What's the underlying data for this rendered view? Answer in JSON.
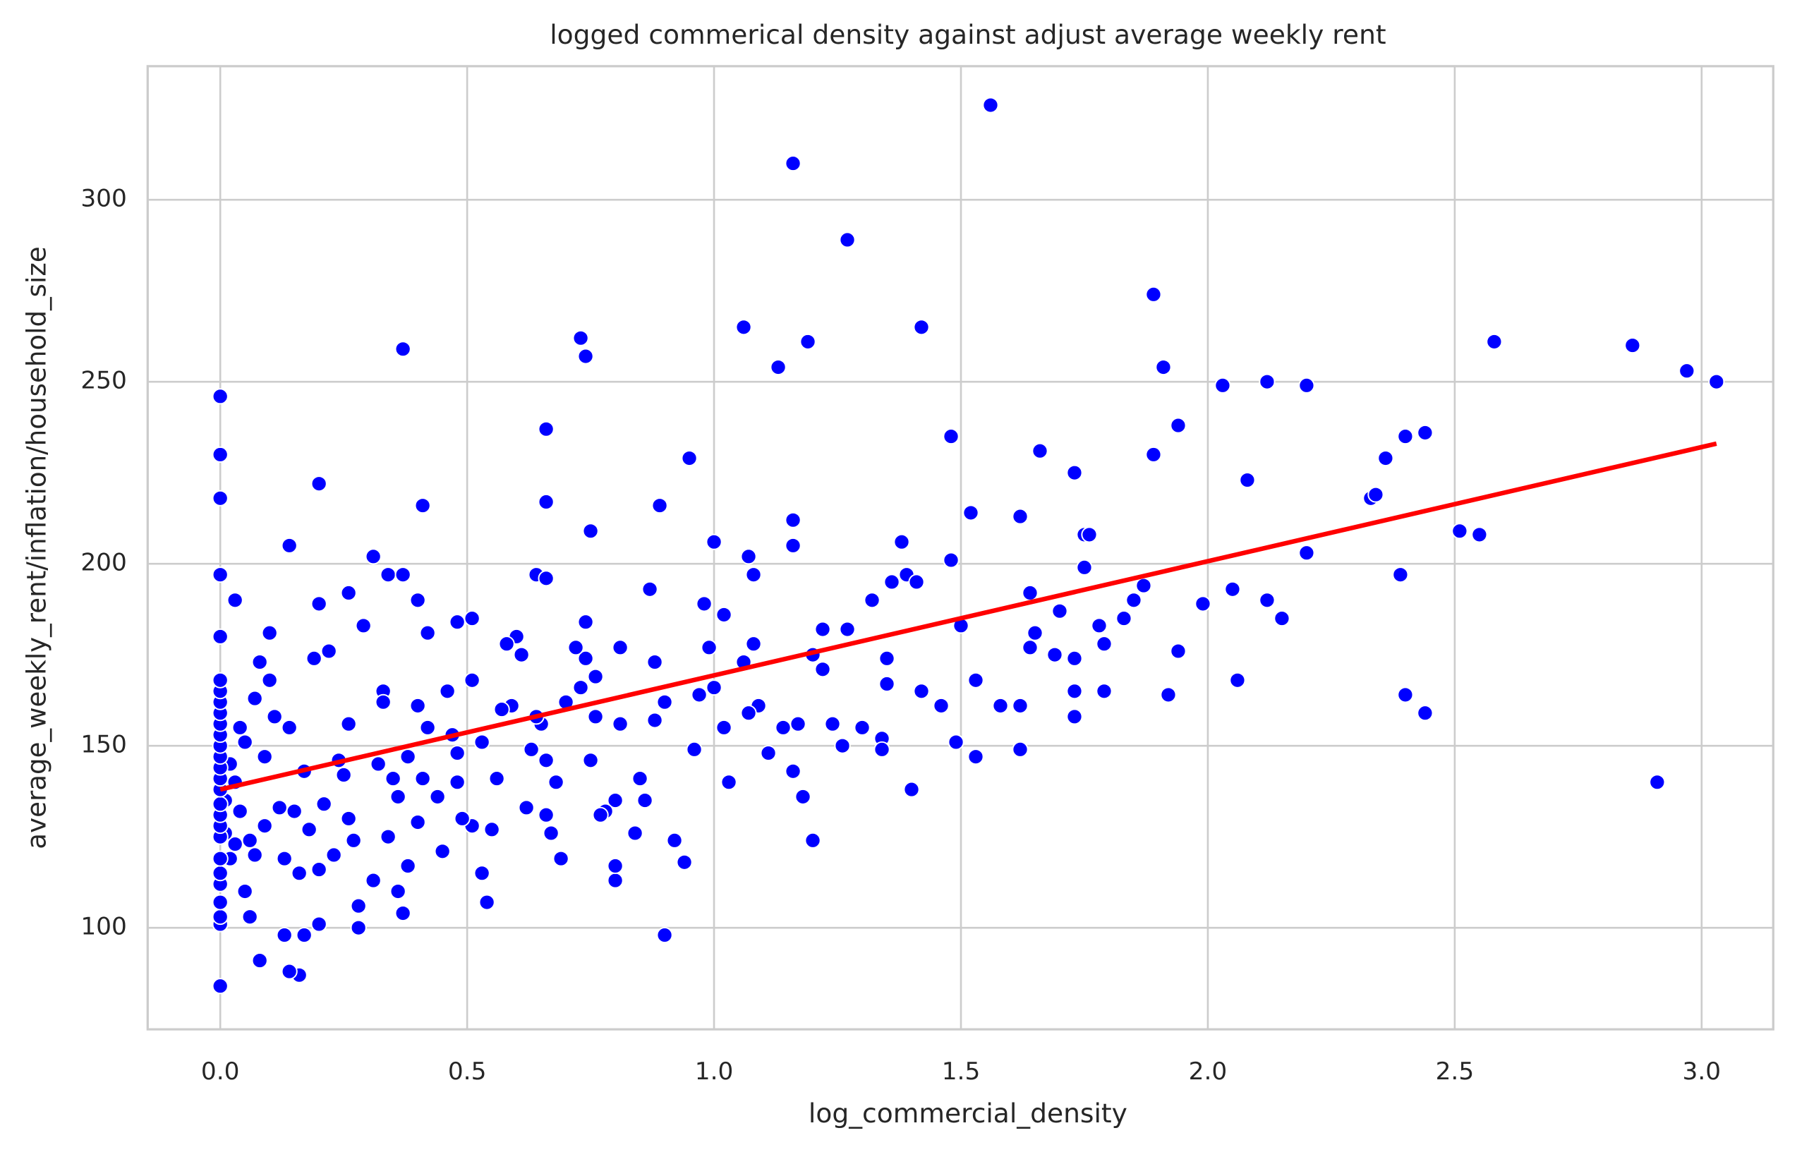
{
  "chart_data": {
    "type": "scatter",
    "title": "logged commerical density against adjust average weekly rent",
    "x_label": "log_commercial_density",
    "y_label": "average_weekly_rent/inflation/household_size",
    "color": "#0000ff",
    "grid": true,
    "xlim": [
      -0.147,
      3.145
    ],
    "ylim": [
      72.1,
      336.7
    ],
    "xticks": [
      {
        "value": 0,
        "label": "0.0"
      },
      0.5,
      {
        "value": 1,
        "label": "1.0"
      },
      1.5,
      {
        "value": 2,
        "label": "2.0"
      },
      2.5,
      {
        "value": 3,
        "label": "3.0"
      }
    ],
    "yticks": [
      100,
      150,
      200,
      250,
      300
    ],
    "x": [
      1.56,
      1.16,
      1.27,
      1.89,
      0.73,
      0.74,
      0.37,
      1.06,
      1.19,
      1.42,
      1.13,
      1.91,
      2.03,
      2.12,
      2.2,
      2.58,
      2.86,
      2.97,
      3.03,
      0.0,
      0.0,
      0.0,
      0.0,
      0.0,
      0.2,
      0.41,
      0.66,
      0.95,
      0.89,
      1.48,
      1.66,
      1.94,
      1.89,
      2.08,
      1.73,
      2.36,
      2.4,
      2.44,
      2.33,
      2.34,
      2.51,
      2.55,
      2.2,
      2.39,
      2.4,
      2.44,
      2.91,
      1.62,
      1.52,
      1.16,
      1.16,
      0.75,
      0.66,
      0.14,
      0.31,
      0.34,
      0.37,
      0.64,
      0.66,
      0.03,
      0.2,
      0.26,
      0.4,
      0.48,
      0.51,
      0.87,
      0.98,
      1.0,
      1.07,
      1.08,
      1.32,
      1.38,
      1.36,
      1.39,
      1.41,
      1.48,
      1.5,
      1.64,
      1.7,
      1.75,
      1.76,
      1.75,
      1.83,
      1.85,
      1.87,
      1.99,
      2.05,
      2.12,
      2.15,
      1.92,
      1.94,
      2.06,
      1.79,
      1.79,
      1.78,
      1.73,
      1.73,
      1.73,
      1.69,
      1.65,
      1.64,
      1.62,
      1.62,
      1.58,
      1.53,
      1.53,
      1.49,
      1.46,
      1.42,
      1.4,
      1.35,
      1.35,
      1.34,
      1.34,
      1.3,
      1.27,
      1.26,
      1.24,
      1.22,
      1.22,
      1.2,
      1.2,
      1.18,
      1.17,
      1.16,
      1.14,
      1.11,
      1.09,
      1.08,
      1.07,
      1.06,
      1.03,
      1.02,
      1.02,
      1.0,
      0.99,
      0.97,
      0.96,
      0.94,
      0.92,
      0.9,
      0.9,
      0.88,
      0.88,
      0.86,
      0.85,
      0.84,
      0.81,
      0.81,
      0.8,
      0.8,
      0.8,
      0.78,
      0.77,
      0.76,
      0.76,
      0.75,
      0.74,
      0.74,
      0.73,
      0.72,
      0.7,
      0.69,
      0.68,
      0.67,
      0.66,
      0.66,
      0.65,
      0.64,
      0.63,
      0.62,
      0.61,
      0.6,
      0.59,
      0.58,
      0.57,
      0.56,
      0.55,
      0.54,
      0.53,
      0.53,
      0.51,
      0.51,
      0.49,
      0.48,
      0.48,
      0.47,
      0.46,
      0.45,
      0.44,
      0.42,
      0.42,
      0.41,
      0.4,
      0.4,
      0.38,
      0.38,
      0.37,
      0.36,
      0.36,
      0.35,
      0.34,
      0.33,
      0.33,
      0.32,
      0.31,
      0.29,
      0.28,
      0.28,
      0.27,
      0.26,
      0.26,
      0.25,
      0.24,
      0.23,
      0.22,
      0.21,
      0.2,
      0.2,
      0.19,
      0.18,
      0.17,
      0.17,
      0.16,
      0.16,
      0.15,
      0.14,
      0.14,
      0.13,
      0.13,
      0.12,
      0.11,
      0.1,
      0.1,
      0.09,
      0.09,
      0.08,
      0.08,
      0.07,
      0.07,
      0.06,
      0.06,
      0.05,
      0.05,
      0.04,
      0.04,
      0.03,
      0.03,
      0.02,
      0.02,
      0.01,
      0.01,
      0.0,
      0.0,
      0.0,
      0.0,
      0.0,
      0.0,
      0.0,
      0.0,
      0.0,
      0.0,
      0.0,
      0.0,
      0.0,
      0.0,
      0.0,
      0.0,
      0.0,
      0.0,
      0.0,
      0.0,
      0.0,
      0.0
    ],
    "values": [
      326,
      310,
      289,
      274,
      262,
      257,
      259,
      265,
      261,
      265,
      254,
      254,
      249,
      250,
      249,
      261,
      260,
      253,
      250,
      246,
      230,
      218,
      197,
      180,
      222,
      216,
      217,
      229,
      216,
      235,
      231,
      238,
      230,
      223,
      225,
      229,
      235,
      236,
      218,
      219,
      209,
      208,
      203,
      197,
      164,
      159,
      140,
      213,
      214,
      212,
      205,
      209,
      237,
      205,
      202,
      197,
      197,
      197,
      196,
      190,
      189,
      192,
      190,
      184,
      185,
      193,
      189,
      206,
      202,
      197,
      190,
      206,
      195,
      197,
      195,
      201,
      183,
      192,
      187,
      208,
      208,
      199,
      185,
      190,
      194,
      189,
      193,
      190,
      185,
      164,
      176,
      168,
      165,
      178,
      183,
      174,
      165,
      158,
      175,
      181,
      177,
      161,
      149,
      161,
      168,
      147,
      151,
      161,
      165,
      138,
      174,
      167,
      152,
      149,
      155,
      182,
      150,
      156,
      182,
      171,
      175,
      124,
      136,
      156,
      143,
      155,
      148,
      161,
      178,
      159,
      173,
      140,
      155,
      186,
      166,
      177,
      164,
      149,
      118,
      124,
      98,
      162,
      173,
      157,
      135,
      141,
      126,
      156,
      177,
      135,
      113,
      117,
      132,
      131,
      158,
      169,
      146,
      184,
      174,
      166,
      177,
      162,
      119,
      140,
      126,
      131,
      146,
      156,
      158,
      149,
      133,
      175,
      180,
      161,
      178,
      160,
      141,
      127,
      107,
      115,
      151,
      168,
      128,
      130,
      148,
      140,
      153,
      165,
      121,
      136,
      155,
      181,
      141,
      161,
      129,
      147,
      117,
      104,
      110,
      136,
      141,
      125,
      165,
      162,
      145,
      113,
      183,
      106,
      100,
      124,
      130,
      156,
      142,
      146,
      120,
      176,
      134,
      116,
      101,
      174,
      127,
      98,
      143,
      87,
      115,
      132,
      88,
      155,
      98,
      119,
      133,
      158,
      168,
      181,
      128,
      147,
      91,
      173,
      163,
      120,
      103,
      124,
      110,
      151,
      132,
      155,
      140,
      123,
      145,
      119,
      135,
      126,
      84,
      101,
      103,
      107,
      112,
      115,
      119,
      125,
      128,
      131,
      134,
      138,
      141,
      144,
      147,
      150,
      153,
      156,
      159,
      162,
      165,
      168
    ],
    "trend_line": {
      "color": "#ff0000",
      "x": [
        0,
        3.03
      ],
      "y": [
        138,
        233
      ]
    }
  }
}
